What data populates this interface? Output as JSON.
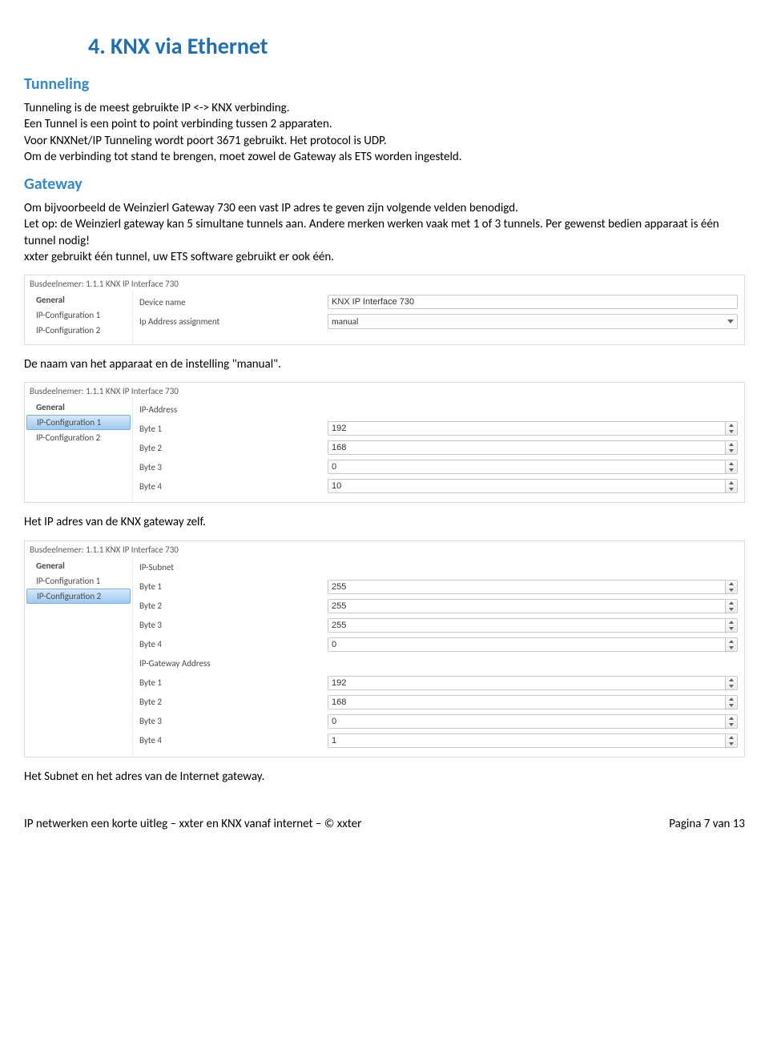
{
  "doc": {
    "title": "4. KNX via Ethernet",
    "h_tunneling": "Tunneling",
    "tunneling_p": "Tunneling is de meest gebruikte IP <-> KNX verbinding.\nEen Tunnel is een point to point verbinding tussen 2 apparaten.\nVoor KNXNet/IP Tunneling wordt poort 3671 gebruikt. Het protocol is UDP.\nOm de verbinding tot stand te brengen, moet zowel de Gateway als ETS worden ingesteld.",
    "h_gateway": "Gateway",
    "gateway_p1": "Om bijvoorbeeld de Weinzierl Gateway 730 een vast IP adres te geven zijn volgende velden benodigd.\nLet op: de Weinzierl gateway kan 5 simultane tunnels aan. Andere merken werken vaak met 1 of 3 tunnels. Per gewenst bedien apparaat is één tunnel nodig!\nxxter gebruikt één tunnel, uw ETS software gebruikt er ook één.",
    "caption1": "De naam van het apparaat en de instelling \"manual\".",
    "caption2": "Het IP adres van de KNX gateway zelf.",
    "caption3": "Het Subnet en het adres van de Internet gateway.",
    "footer_left": "IP netwerken een korte uitleg – xxter en KNX vanaf internet – © xxter",
    "footer_right": "Pagina 7 van 13"
  },
  "panel_common": {
    "header": "Busdeelnemer: 1.1.1  KNX IP Interface 730",
    "side_general": "General",
    "side_ipc1": "IP-Configuration 1",
    "side_ipc2": "IP-Configuration 2"
  },
  "panel1": {
    "labels": {
      "device_name": "Device name",
      "ip_assign": "Ip Address assignment"
    },
    "values": {
      "device_name": "KNX IP Interface 730",
      "ip_assign": "manual"
    }
  },
  "panel2": {
    "labels": {
      "head": "IP-Address",
      "b1": "Byte 1",
      "b2": "Byte 2",
      "b3": "Byte 3",
      "b4": "Byte 4"
    },
    "values": {
      "b1": "192",
      "b2": "168",
      "b3": "0",
      "b4": "10"
    }
  },
  "panel3": {
    "labels": {
      "head_subnet": "IP-Subnet",
      "head_gw": "IP-Gateway Address",
      "b1": "Byte 1",
      "b2": "Byte 2",
      "b3": "Byte 3",
      "b4": "Byte 4"
    },
    "subnet": {
      "b1": "255",
      "b2": "255",
      "b3": "255",
      "b4": "0"
    },
    "gw": {
      "b1": "192",
      "b2": "168",
      "b3": "0",
      "b4": "1"
    }
  }
}
